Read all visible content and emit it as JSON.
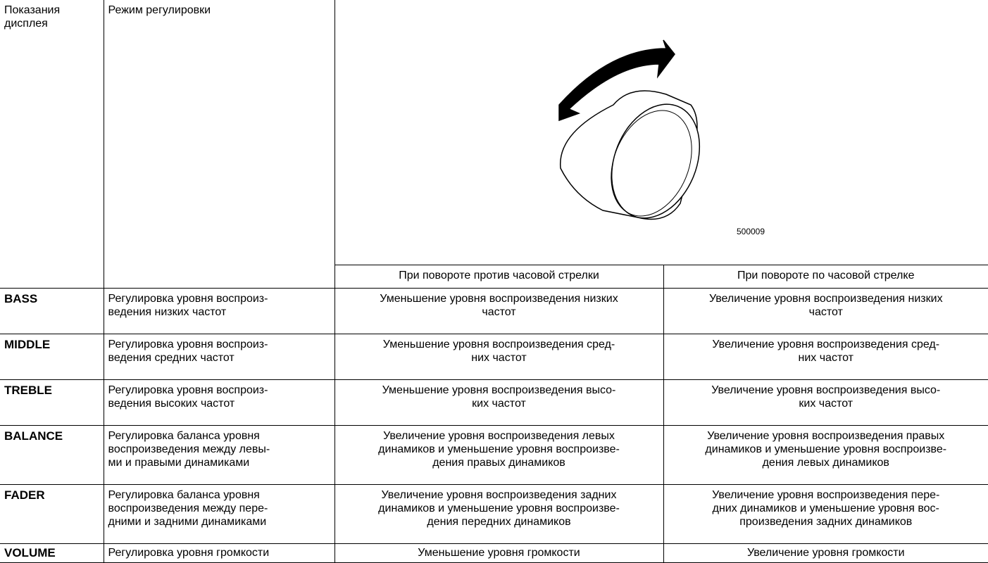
{
  "table": {
    "header": [
      "Показания\nдисплея",
      "Режим регулировки"
    ],
    "figure_id": "500009",
    "subheader": [
      "При повороте против часовой стрелки",
      "При повороте по часовой стрелке"
    ],
    "rows": [
      [
        "BASS",
        "Регулировка уровня воспроиз-\nведения низких частот",
        "Уменьшение уровня воспроизведения низких\nчастот",
        "Увеличение уровня воспроизведения низких\nчастот"
      ],
      [
        "MIDDLE",
        "Регулировка уровня воспроиз-\nведения средних частот",
        "Уменьшение уровня воспроизведения сред-\nних частот",
        "Увеличение уровня воспроизведения сред-\nних частот"
      ],
      [
        "TREBLE",
        "Регулировка уровня воспроиз-\nведения высоких частот",
        "Уменьшение уровня воспроизведения высо-\nких частот",
        "Увеличение уровня воспроизведения высо-\nких частот"
      ],
      [
        "BALANCE",
        "Регулировка баланса уровня\nвоспроизведения между левы-\nми и правыми динамиками",
        "Увеличение уровня воспроизведения левых\nдинамиков и уменьшение уровня воспроизве-\nдения правых динамиков",
        "Увеличение уровня воспроизведения правых\nдинамиков и уменьшение уровня воспроизве-\nдения левых динамиков"
      ],
      [
        "FADER",
        "Регулировка баланса уровня\nвоспроизведения между пере-\nдними и задними динамиками",
        "Увеличение уровня воспроизведения задних\nдинамиков и уменьшение уровня воспроизве-\nдения передних динамиков",
        "Увеличение уровня воспроизведения пере-\nдних динамиков и уменьшение уровня вос-\nпроизведения задних динамиков"
      ],
      [
        "VOLUME",
        "Регулировка уровня громкости",
        "Уменьшение уровня громкости",
        "Увеличение уровня громкости"
      ]
    ]
  }
}
